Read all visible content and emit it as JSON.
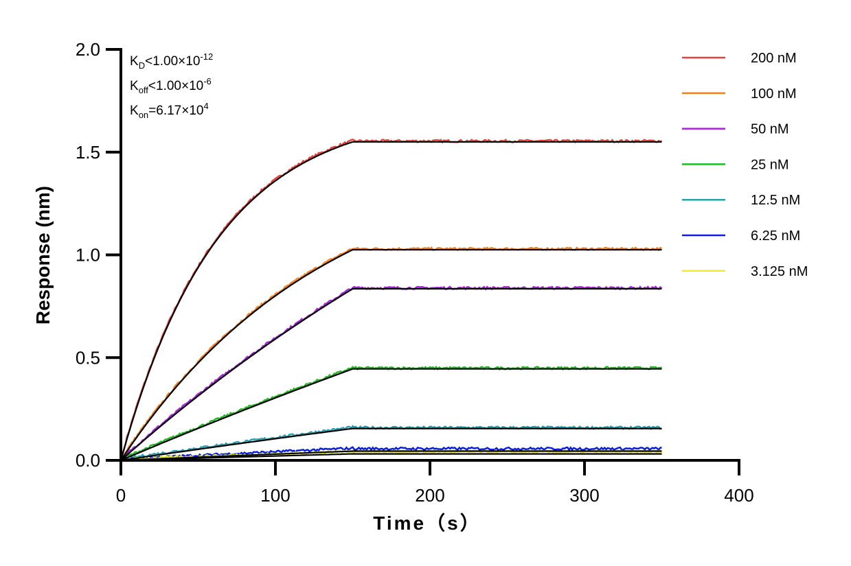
{
  "chart_data": {
    "type": "line",
    "title": "",
    "xlabel": "Time（s）",
    "ylabel": "Response (nm)",
    "xlim": [
      0,
      400
    ],
    "ylim": [
      0,
      2.0
    ],
    "xticks": [
      "0",
      "100",
      "200",
      "300",
      "400"
    ],
    "yticks": [
      "0.0",
      "0.5",
      "1.0",
      "1.5",
      "2.0"
    ],
    "grid": false,
    "legend_position": "top-right",
    "association_end_s": 150,
    "end_s": 350,
    "annotations": {
      "kd": {
        "main": "K",
        "sub": "D",
        "text": "<1.00×10",
        "exp": "-12"
      },
      "koff": {
        "main": "K",
        "sub": "off",
        "text": "<1.00×10",
        "exp": "-6"
      },
      "kon": {
        "main": "K",
        "sub": "on",
        "text": "=6.17×10",
        "exp": "4"
      }
    },
    "fit_color": "#000000",
    "series": [
      {
        "name": "200 nM",
        "color": "#e8413c",
        "plateau": 1.55,
        "k_obs": 0.016
      },
      {
        "name": "100 nM",
        "color": "#f5821f",
        "plateau": 1.025,
        "k_obs": 0.0075
      },
      {
        "name": "50 nM",
        "color": "#a526d6",
        "plateau": 0.835,
        "k_obs": 0.0025
      },
      {
        "name": "25 nM",
        "color": "#22b822",
        "plateau": 0.445,
        "k_obs": 0.001
      },
      {
        "name": "12.5 nM",
        "color": "#2a9fb0",
        "plateau": 0.155,
        "k_obs": 0.0008
      },
      {
        "name": "6.25 nM",
        "color": "#0a1ee0",
        "plateau": 0.053,
        "k_obs": 0.0005
      },
      {
        "name": "3.125 nM",
        "color": "#f0f020",
        "plateau": 0.037,
        "k_obs": 0.0005
      }
    ]
  }
}
